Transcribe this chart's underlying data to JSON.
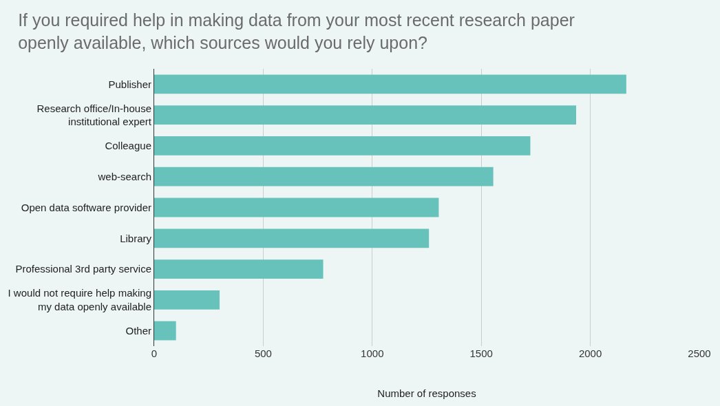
{
  "chart_data": {
    "type": "bar",
    "orientation": "horizontal",
    "title": "If you required help in making data from your most recent research paper\nopenly available, which sources would you rely upon?",
    "xlabel": "Number of responses",
    "categories": [
      "Publisher",
      "Research office/In-house\ninstitutional expert",
      "Colleague",
      "web-search",
      "Open data software provider",
      "Library",
      "Professional 3rd party service",
      "I would not require help making\nmy data openly available",
      "Other"
    ],
    "values": [
      2165,
      1935,
      1725,
      1555,
      1305,
      1260,
      775,
      300,
      100
    ],
    "color": "#66c2bb",
    "xlim": [
      0,
      2500
    ],
    "xticks": [
      0,
      500,
      1000,
      1500,
      2000,
      2500
    ],
    "grid": "x",
    "legend": false
  }
}
